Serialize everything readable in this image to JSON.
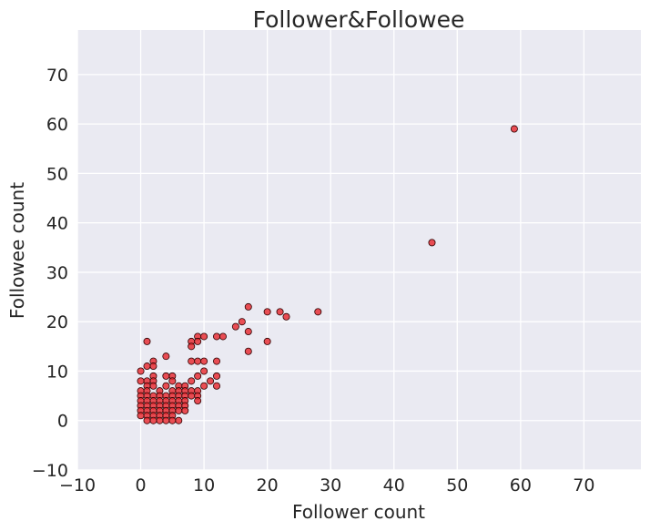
{
  "chart_data": {
    "type": "scatter",
    "title": "Follower&Followee",
    "xlabel": "Follower count",
    "ylabel": "Followee count",
    "xlim": [
      -10,
      79
    ],
    "ylim": [
      -10,
      79
    ],
    "xticks": [
      -10,
      0,
      10,
      20,
      30,
      40,
      50,
      60,
      70
    ],
    "yticks": [
      -10,
      0,
      10,
      20,
      30,
      40,
      50,
      60,
      70
    ],
    "grid": true,
    "point_color": "#e8292f",
    "edge_color": "#2b0000",
    "background_color": "#eaeaf2",
    "points": [
      [
        59,
        59
      ],
      [
        46,
        36
      ],
      [
        28,
        22
      ],
      [
        23,
        21
      ],
      [
        22,
        22
      ],
      [
        20,
        22
      ],
      [
        20,
        16
      ],
      [
        17,
        23
      ],
      [
        17,
        18
      ],
      [
        17,
        14
      ],
      [
        16,
        20
      ],
      [
        15,
        19
      ],
      [
        13,
        17
      ],
      [
        12,
        17
      ],
      [
        12,
        12
      ],
      [
        12,
        9
      ],
      [
        12,
        7
      ],
      [
        11,
        8
      ],
      [
        10,
        17
      ],
      [
        10,
        12
      ],
      [
        10,
        10
      ],
      [
        10,
        7
      ],
      [
        9,
        17
      ],
      [
        9,
        16
      ],
      [
        9,
        12
      ],
      [
        9,
        9
      ],
      [
        9,
        6
      ],
      [
        9,
        5
      ],
      [
        9,
        4
      ],
      [
        8,
        16
      ],
      [
        8,
        15
      ],
      [
        8,
        12
      ],
      [
        8,
        8
      ],
      [
        8,
        6
      ],
      [
        8,
        5
      ],
      [
        7,
        7
      ],
      [
        7,
        6
      ],
      [
        7,
        5
      ],
      [
        7,
        4
      ],
      [
        7,
        3
      ],
      [
        7,
        2
      ],
      [
        6,
        7
      ],
      [
        6,
        6
      ],
      [
        6,
        5
      ],
      [
        6,
        4
      ],
      [
        6,
        3
      ],
      [
        6,
        2
      ],
      [
        6,
        0
      ],
      [
        5,
        9
      ],
      [
        5,
        8
      ],
      [
        5,
        6
      ],
      [
        5,
        5
      ],
      [
        5,
        4
      ],
      [
        5,
        3
      ],
      [
        5,
        2
      ],
      [
        5,
        1
      ],
      [
        5,
        0
      ],
      [
        4,
        13
      ],
      [
        4,
        9
      ],
      [
        4,
        7
      ],
      [
        4,
        5
      ],
      [
        4,
        4
      ],
      [
        4,
        3
      ],
      [
        4,
        2
      ],
      [
        4,
        1
      ],
      [
        4,
        0
      ],
      [
        3,
        6
      ],
      [
        3,
        5
      ],
      [
        3,
        4
      ],
      [
        3,
        3
      ],
      [
        3,
        2
      ],
      [
        3,
        1
      ],
      [
        3,
        0
      ],
      [
        2,
        12
      ],
      [
        2,
        11
      ],
      [
        2,
        9
      ],
      [
        2,
        8
      ],
      [
        2,
        7
      ],
      [
        2,
        5
      ],
      [
        2,
        4
      ],
      [
        2,
        3
      ],
      [
        2,
        2
      ],
      [
        2,
        1
      ],
      [
        2,
        0
      ],
      [
        1,
        16
      ],
      [
        1,
        11
      ],
      [
        1,
        8
      ],
      [
        1,
        7
      ],
      [
        1,
        6
      ],
      [
        1,
        5
      ],
      [
        1,
        4
      ],
      [
        1,
        3
      ],
      [
        1,
        2
      ],
      [
        1,
        1
      ],
      [
        1,
        0
      ],
      [
        0,
        10
      ],
      [
        0,
        8
      ],
      [
        0,
        6
      ],
      [
        0,
        5
      ],
      [
        0,
        4
      ],
      [
        0,
        3
      ],
      [
        0,
        2
      ],
      [
        0,
        1
      ]
    ]
  }
}
